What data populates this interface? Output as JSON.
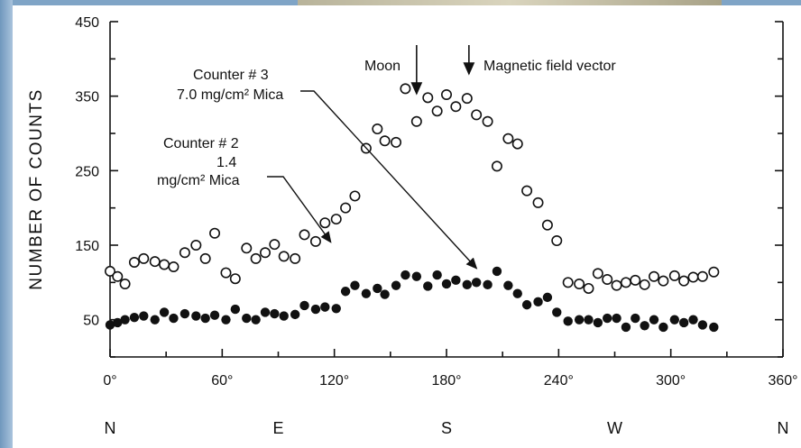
{
  "chart_data": {
    "type": "scatter",
    "title": "",
    "xlabel": "",
    "ylabel": "NUMBER OF COUNTS",
    "xlim": [
      0,
      360
    ],
    "ylim": [
      0,
      450
    ],
    "x_ticks": [
      {
        "value": 0,
        "label": "0°"
      },
      {
        "value": 60,
        "label": "60°"
      },
      {
        "value": 120,
        "label": "120°"
      },
      {
        "value": 180,
        "label": "180°"
      },
      {
        "value": 240,
        "label": "240°"
      },
      {
        "value": 300,
        "label": "300°"
      },
      {
        "value": 360,
        "label": "360°"
      }
    ],
    "y_ticks": [
      {
        "value": 50,
        "label": "50"
      },
      {
        "value": 150,
        "label": "150"
      },
      {
        "value": 250,
        "label": "250"
      },
      {
        "value": 350,
        "label": "350"
      },
      {
        "value": 450,
        "label": "450"
      }
    ],
    "directions": [
      {
        "value": 0,
        "label": "N"
      },
      {
        "value": 90,
        "label": "E"
      },
      {
        "value": 180,
        "label": "S"
      },
      {
        "value": 270,
        "label": "W"
      },
      {
        "value": 360,
        "label": "N"
      }
    ],
    "grid": false,
    "series": [
      {
        "name": "Counter # 3 7.0 mg/cm² Mica",
        "marker": "open-circle",
        "points": [
          [
            0,
            115
          ],
          [
            4,
            108
          ],
          [
            8,
            98
          ],
          [
            13,
            127
          ],
          [
            18,
            132
          ],
          [
            24,
            128
          ],
          [
            29,
            124
          ],
          [
            34,
            121
          ],
          [
            40,
            140
          ],
          [
            46,
            150
          ],
          [
            51,
            132
          ],
          [
            56,
            166
          ],
          [
            62,
            113
          ],
          [
            67,
            105
          ],
          [
            73,
            146
          ],
          [
            78,
            132
          ],
          [
            83,
            140
          ],
          [
            88,
            151
          ],
          [
            93,
            135
          ],
          [
            99,
            132
          ],
          [
            104,
            164
          ],
          [
            110,
            155
          ],
          [
            115,
            180
          ],
          [
            121,
            185
          ],
          [
            126,
            200
          ],
          [
            131,
            216
          ],
          [
            137,
            280
          ],
          [
            143,
            306
          ],
          [
            147,
            290
          ],
          [
            153,
            288
          ],
          [
            158,
            360
          ],
          [
            164,
            316
          ],
          [
            170,
            348
          ],
          [
            175,
            330
          ],
          [
            180,
            352
          ],
          [
            185,
            336
          ],
          [
            191,
            347
          ],
          [
            196,
            325
          ],
          [
            202,
            316
          ],
          [
            207,
            256
          ],
          [
            213,
            293
          ],
          [
            218,
            286
          ],
          [
            223,
            223
          ],
          [
            229,
            207
          ],
          [
            234,
            177
          ],
          [
            239,
            156
          ],
          [
            245,
            100
          ],
          [
            251,
            98
          ],
          [
            256,
            92
          ],
          [
            261,
            112
          ],
          [
            266,
            104
          ],
          [
            271,
            96
          ],
          [
            276,
            100
          ],
          [
            281,
            103
          ],
          [
            286,
            97
          ],
          [
            291,
            108
          ],
          [
            296,
            102
          ],
          [
            302,
            109
          ],
          [
            307,
            102
          ],
          [
            312,
            107
          ],
          [
            317,
            108
          ],
          [
            323,
            114
          ]
        ]
      },
      {
        "name": "Counter # 2 1.4 mg/cm² Mica",
        "marker": "filled-circle",
        "points": [
          [
            0,
            43
          ],
          [
            4,
            46
          ],
          [
            8,
            50
          ],
          [
            13,
            53
          ],
          [
            18,
            55
          ],
          [
            24,
            50
          ],
          [
            29,
            60
          ],
          [
            34,
            52
          ],
          [
            40,
            58
          ],
          [
            46,
            55
          ],
          [
            51,
            52
          ],
          [
            56,
            56
          ],
          [
            62,
            50
          ],
          [
            67,
            64
          ],
          [
            73,
            52
          ],
          [
            78,
            50
          ],
          [
            83,
            60
          ],
          [
            88,
            58
          ],
          [
            93,
            55
          ],
          [
            99,
            57
          ],
          [
            104,
            69
          ],
          [
            110,
            64
          ],
          [
            115,
            67
          ],
          [
            121,
            65
          ],
          [
            126,
            88
          ],
          [
            131,
            96
          ],
          [
            137,
            85
          ],
          [
            143,
            92
          ],
          [
            147,
            84
          ],
          [
            153,
            96
          ],
          [
            158,
            110
          ],
          [
            164,
            108
          ],
          [
            170,
            95
          ],
          [
            175,
            110
          ],
          [
            180,
            98
          ],
          [
            185,
            103
          ],
          [
            191,
            97
          ],
          [
            196,
            100
          ],
          [
            202,
            97
          ],
          [
            207,
            115
          ],
          [
            213,
            96
          ],
          [
            218,
            85
          ],
          [
            223,
            70
          ],
          [
            229,
            74
          ],
          [
            234,
            80
          ],
          [
            239,
            60
          ],
          [
            245,
            48
          ],
          [
            251,
            50
          ],
          [
            256,
            50
          ],
          [
            261,
            46
          ],
          [
            266,
            52
          ],
          [
            271,
            52
          ],
          [
            276,
            40
          ],
          [
            281,
            52
          ],
          [
            286,
            42
          ],
          [
            291,
            50
          ],
          [
            296,
            40
          ],
          [
            302,
            50
          ],
          [
            307,
            46
          ],
          [
            312,
            50
          ],
          [
            317,
            43
          ],
          [
            323,
            40
          ]
        ]
      }
    ],
    "annotations": {
      "moon": {
        "label": "Moon",
        "x": 164
      },
      "magnetic": {
        "label": "Magnetic field vector",
        "x": 192
      },
      "counter3": {
        "line1": "Counter # 3",
        "line2": "7.0 mg/cm² Mica",
        "target_x": 198,
        "target_y": 108
      },
      "counter2": {
        "line1": "Counter # 2",
        "line2": "1.4",
        "line3": "mg/cm² Mica",
        "target_x": 120,
        "target_y": 165
      }
    }
  }
}
